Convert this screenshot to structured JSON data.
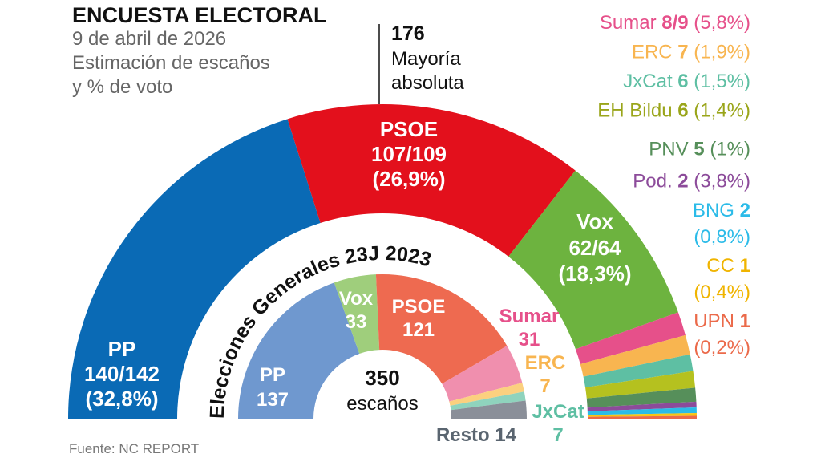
{
  "header": {
    "title": "ENCUESTA ELECTORAL",
    "subtitle_lines": [
      "9 de abril de 2026",
      "Estimación de escaños",
      "y % de voto"
    ]
  },
  "majority": {
    "number": "176",
    "line1": "Mayoría",
    "line2": "absoluta"
  },
  "source": "Fuente: NC REPORT",
  "center_label": {
    "number": "350",
    "unit": "escaños"
  },
  "inner_title": "Elecciones Generales 23J 2023",
  "chart_data": [
    {
      "type": "pie",
      "subtype": "hemicycle",
      "title": "Estimación de escaños y % de voto",
      "total_seats": 350,
      "majority": 176,
      "categories": [
        "PP",
        "PSOE",
        "Vox",
        "Sumar",
        "ERC",
        "JxCat",
        "EH Bildu",
        "PNV",
        "Pod.",
        "BNG",
        "CC",
        "UPN"
      ],
      "seats_label": [
        "140/142",
        "107/109",
        "62/64",
        "8/9",
        "7",
        "6",
        "6",
        "5",
        "2",
        "2",
        "1",
        "1"
      ],
      "values": [
        141,
        108,
        63,
        8.5,
        7,
        6,
        6,
        5,
        2,
        2,
        1,
        1
      ],
      "vote_pct": [
        "32,8%",
        "26,9%",
        "18,3%",
        "5,8%",
        "1,9%",
        "1,5%",
        "1,4%",
        "1%",
        "3,8%",
        "0,8%",
        "0,4%",
        "0,2%"
      ],
      "colors": [
        "#0a6ab5",
        "#e3101c",
        "#6db33f",
        "#e6508a",
        "#f8b550",
        "#5ebfa3",
        "#b5c11f",
        "#568f5a",
        "#8c4b9a",
        "#2bbbe8",
        "#f9c411",
        "#eb6a4a"
      ]
    },
    {
      "type": "pie",
      "subtype": "hemicycle",
      "title": "Elecciones Generales 23J 2023",
      "categories": [
        "PP",
        "Vox",
        "PSOE",
        "Sumar",
        "ERC",
        "JxCat",
        "Resto"
      ],
      "values": [
        137,
        33,
        121,
        31,
        7,
        7,
        14
      ],
      "colors": [
        "#6f98cf",
        "#9fce7c",
        "#ee6a50",
        "#f08fae",
        "#fbd07f",
        "#8fd3bd",
        "#8a8f99"
      ]
    }
  ],
  "outer_labels": {
    "pp": [
      "PP",
      "140/142",
      "(32,8%)"
    ],
    "psoe": [
      "PSOE",
      "107/109",
      "(26,9%)"
    ],
    "vox": [
      "Vox",
      "62/64",
      "(18,3%)"
    ]
  },
  "inner_labels": {
    "pp": [
      "PP",
      "137"
    ],
    "vox": [
      "Vox",
      "33"
    ],
    "psoe": [
      "PSOE",
      "121"
    ],
    "sumar": [
      "Sumar",
      "31"
    ],
    "erc": [
      "ERC",
      "7"
    ],
    "jxcat": [
      "JxCat",
      "7"
    ],
    "resto": "Resto 14"
  },
  "legend": [
    {
      "name": "Sumar ",
      "seats": "8/9",
      "pct": " (5,8%)",
      "color": "#e6508a"
    },
    {
      "name": "ERC ",
      "seats": "7",
      "pct": " (1,9%)",
      "color": "#f8b550"
    },
    {
      "name": "JxCat ",
      "seats": "6",
      "pct": " (1,5%)",
      "color": "#5ebfa3"
    },
    {
      "name": "EH Bildu ",
      "seats": "6",
      "pct": " (1,4%)",
      "color": "#9aa51a"
    },
    {
      "name": "PNV ",
      "seats": "5",
      "pct": " (1%)",
      "color": "#568f5a"
    },
    {
      "name": "Pod. ",
      "seats": "2",
      "pct": " (3,8%)",
      "color": "#8c4b9a"
    },
    {
      "name": "BNG ",
      "seats": "2",
      "pct": "(0,8%)",
      "color": "#2bbbe8",
      "split": true
    },
    {
      "name": "CC ",
      "seats": "1",
      "pct": "(0,4%)",
      "color": "#f0b400",
      "split": true
    },
    {
      "name": "UPN ",
      "seats": "1",
      "pct": "(0,2%)",
      "color": "#eb6a4a",
      "split": true
    }
  ]
}
